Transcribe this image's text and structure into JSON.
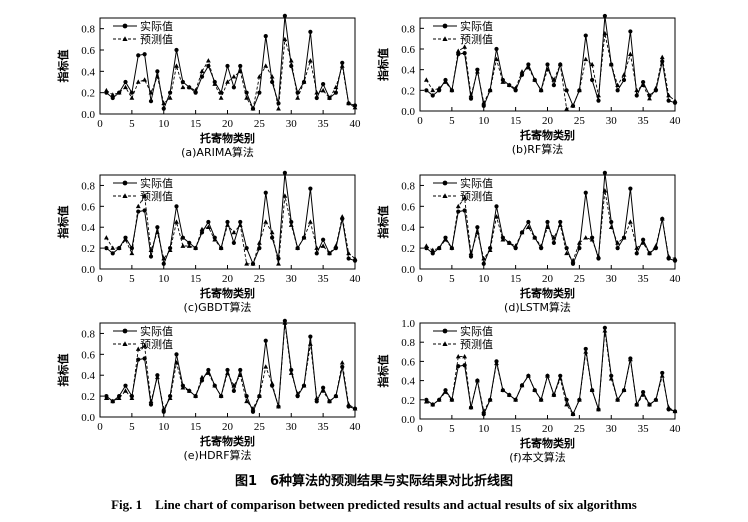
{
  "figure": {
    "caption_cn": "图1　6种算法的预测结果与实际结果对比折线图",
    "caption_en": "Fig. 1　Line chart of comparison between predicted results and actual results of six algorithms"
  },
  "chart_data": [
    {
      "type": "line",
      "title": "(a)ARIMA算法",
      "xlabel": "托寄物类别",
      "ylabel": "指标值",
      "xlim": [
        0,
        40
      ],
      "ylim": [
        0,
        0.9
      ],
      "yticks": [
        0.0,
        0.2,
        0.4,
        0.6,
        0.8
      ],
      "xticks": [
        0,
        5,
        10,
        15,
        20,
        25,
        30,
        35,
        40
      ],
      "legend": "top-left",
      "grid": false,
      "x": [
        1,
        2,
        3,
        4,
        5,
        6,
        7,
        8,
        9,
        10,
        11,
        12,
        13,
        14,
        15,
        16,
        17,
        18,
        19,
        20,
        21,
        22,
        23,
        24,
        25,
        26,
        27,
        28,
        29,
        30,
        31,
        32,
        33,
        34,
        35,
        36,
        37,
        38,
        39,
        40
      ],
      "series": [
        {
          "name": "实际值",
          "style": "solid-circle",
          "values": [
            0.2,
            0.15,
            0.2,
            0.3,
            0.2,
            0.55,
            0.56,
            0.12,
            0.4,
            0.05,
            0.2,
            0.6,
            0.3,
            0.25,
            0.2,
            0.35,
            0.45,
            0.3,
            0.2,
            0.45,
            0.25,
            0.45,
            0.2,
            0.05,
            0.2,
            0.73,
            0.3,
            0.1,
            0.92,
            0.45,
            0.2,
            0.3,
            0.77,
            0.15,
            0.28,
            0.15,
            0.2,
            0.48,
            0.1,
            0.08
          ]
        },
        {
          "name": "预测值",
          "style": "dashed-triangle",
          "values": [
            0.22,
            0.18,
            0.2,
            0.25,
            0.15,
            0.3,
            0.32,
            0.2,
            0.35,
            0.1,
            0.15,
            0.45,
            0.25,
            0.25,
            0.22,
            0.4,
            0.5,
            0.28,
            0.15,
            0.3,
            0.35,
            0.4,
            0.15,
            0.05,
            0.35,
            0.45,
            0.35,
            0.05,
            0.7,
            0.5,
            0.15,
            0.3,
            0.5,
            0.2,
            0.22,
            0.15,
            0.25,
            0.45,
            0.1,
            0.06
          ]
        }
      ]
    },
    {
      "type": "line",
      "title": "(b)RF算法",
      "xlabel": "托寄物类别",
      "ylabel": "指标值",
      "xlim": [
        0,
        40
      ],
      "ylim": [
        0,
        0.9
      ],
      "yticks": [
        0.0,
        0.2,
        0.4,
        0.6,
        0.8
      ],
      "xticks": [
        0,
        5,
        10,
        15,
        20,
        25,
        30,
        35,
        40
      ],
      "legend": "top-left",
      "grid": false,
      "x": [
        1,
        2,
        3,
        4,
        5,
        6,
        7,
        8,
        9,
        10,
        11,
        12,
        13,
        14,
        15,
        16,
        17,
        18,
        19,
        20,
        21,
        22,
        23,
        24,
        25,
        26,
        27,
        28,
        29,
        30,
        31,
        32,
        33,
        34,
        35,
        36,
        37,
        38,
        39,
        40
      ],
      "series": [
        {
          "name": "实际值",
          "style": "solid-circle",
          "values": [
            0.2,
            0.15,
            0.2,
            0.3,
            0.2,
            0.55,
            0.56,
            0.12,
            0.4,
            0.05,
            0.2,
            0.6,
            0.3,
            0.25,
            0.2,
            0.35,
            0.45,
            0.3,
            0.2,
            0.45,
            0.25,
            0.45,
            0.2,
            0.05,
            0.2,
            0.73,
            0.3,
            0.1,
            0.92,
            0.45,
            0.2,
            0.3,
            0.77,
            0.15,
            0.28,
            0.15,
            0.2,
            0.48,
            0.1,
            0.08
          ]
        },
        {
          "name": "预测值",
          "style": "dashed-triangle",
          "values": [
            0.3,
            0.2,
            0.22,
            0.28,
            0.2,
            0.58,
            0.62,
            0.15,
            0.38,
            0.08,
            0.2,
            0.5,
            0.28,
            0.25,
            0.22,
            0.38,
            0.42,
            0.3,
            0.2,
            0.4,
            0.3,
            0.45,
            0.02,
            0.05,
            0.2,
            0.5,
            0.45,
            0.15,
            0.75,
            0.45,
            0.25,
            0.35,
            0.55,
            0.2,
            0.25,
            0.12,
            0.22,
            0.52,
            0.15,
            0.1
          ]
        }
      ]
    },
    {
      "type": "line",
      "title": "(c)GBDT算法",
      "xlabel": "托寄物类别",
      "ylabel": "指标值",
      "xlim": [
        0,
        40
      ],
      "ylim": [
        0,
        0.9
      ],
      "yticks": [
        0.0,
        0.2,
        0.4,
        0.6,
        0.8
      ],
      "xticks": [
        0,
        5,
        10,
        15,
        20,
        25,
        30,
        35,
        40
      ],
      "legend": "top-left",
      "grid": false,
      "x": [
        1,
        2,
        3,
        4,
        5,
        6,
        7,
        8,
        9,
        10,
        11,
        12,
        13,
        14,
        15,
        16,
        17,
        18,
        19,
        20,
        21,
        22,
        23,
        24,
        25,
        26,
        27,
        28,
        29,
        30,
        31,
        32,
        33,
        34,
        35,
        36,
        37,
        38,
        39,
        40
      ],
      "series": [
        {
          "name": "实际值",
          "style": "solid-circle",
          "values": [
            0.2,
            0.15,
            0.2,
            0.3,
            0.2,
            0.55,
            0.56,
            0.12,
            0.4,
            0.05,
            0.2,
            0.6,
            0.3,
            0.25,
            0.2,
            0.35,
            0.45,
            0.3,
            0.2,
            0.45,
            0.25,
            0.45,
            0.2,
            0.05,
            0.2,
            0.73,
            0.3,
            0.1,
            0.92,
            0.45,
            0.2,
            0.3,
            0.77,
            0.15,
            0.28,
            0.15,
            0.2,
            0.48,
            0.1,
            0.08
          ]
        },
        {
          "name": "预测值",
          "style": "dashed-triangle",
          "values": [
            0.3,
            0.2,
            0.2,
            0.28,
            0.15,
            0.6,
            0.7,
            0.18,
            0.35,
            0.1,
            0.18,
            0.45,
            0.22,
            0.22,
            0.2,
            0.38,
            0.4,
            0.28,
            0.2,
            0.42,
            0.35,
            0.42,
            0.05,
            0.05,
            0.25,
            0.45,
            0.35,
            0.05,
            0.7,
            0.42,
            0.2,
            0.3,
            0.45,
            0.2,
            0.22,
            0.15,
            0.22,
            0.5,
            0.15,
            0.1
          ]
        }
      ]
    },
    {
      "type": "line",
      "title": "(d)LSTM算法",
      "xlabel": "托寄物类别",
      "ylabel": "指标值",
      "xlim": [
        0,
        40
      ],
      "ylim": [
        0,
        0.9
      ],
      "yticks": [
        0.0,
        0.2,
        0.4,
        0.6,
        0.8
      ],
      "xticks": [
        0,
        5,
        10,
        15,
        20,
        25,
        30,
        35,
        40
      ],
      "legend": "top-left",
      "grid": false,
      "x": [
        1,
        2,
        3,
        4,
        5,
        6,
        7,
        8,
        9,
        10,
        11,
        12,
        13,
        14,
        15,
        16,
        17,
        18,
        19,
        20,
        21,
        22,
        23,
        24,
        25,
        26,
        27,
        28,
        29,
        30,
        31,
        32,
        33,
        34,
        35,
        36,
        37,
        38,
        39,
        40
      ],
      "series": [
        {
          "name": "实际值",
          "style": "solid-circle",
          "values": [
            0.2,
            0.15,
            0.2,
            0.3,
            0.2,
            0.55,
            0.56,
            0.12,
            0.4,
            0.05,
            0.2,
            0.6,
            0.3,
            0.25,
            0.2,
            0.35,
            0.45,
            0.3,
            0.2,
            0.45,
            0.25,
            0.45,
            0.2,
            0.05,
            0.2,
            0.73,
            0.3,
            0.1,
            0.92,
            0.45,
            0.2,
            0.3,
            0.77,
            0.15,
            0.28,
            0.15,
            0.2,
            0.48,
            0.1,
            0.08
          ]
        },
        {
          "name": "预测值",
          "style": "dashed-triangle",
          "values": [
            0.22,
            0.18,
            0.2,
            0.28,
            0.2,
            0.6,
            0.68,
            0.15,
            0.35,
            0.1,
            0.18,
            0.5,
            0.28,
            0.25,
            0.22,
            0.35,
            0.4,
            0.3,
            0.22,
            0.4,
            0.3,
            0.42,
            0.15,
            0.08,
            0.25,
            0.3,
            0.28,
            0.12,
            0.75,
            0.4,
            0.25,
            0.3,
            0.45,
            0.2,
            0.25,
            0.15,
            0.22,
            0.48,
            0.12,
            0.1
          ]
        }
      ]
    },
    {
      "type": "line",
      "title": "(e)HDRF算法",
      "xlabel": "托寄物类别",
      "ylabel": "指标值",
      "xlim": [
        0,
        40
      ],
      "ylim": [
        0,
        0.9
      ],
      "yticks": [
        0.0,
        0.2,
        0.4,
        0.6,
        0.8
      ],
      "xticks": [
        0,
        5,
        10,
        15,
        20,
        25,
        30,
        35,
        40
      ],
      "legend": "top-left",
      "grid": false,
      "x": [
        1,
        2,
        3,
        4,
        5,
        6,
        7,
        8,
        9,
        10,
        11,
        12,
        13,
        14,
        15,
        16,
        17,
        18,
        19,
        20,
        21,
        22,
        23,
        24,
        25,
        26,
        27,
        28,
        29,
        30,
        31,
        32,
        33,
        34,
        35,
        36,
        37,
        38,
        39,
        40
      ],
      "series": [
        {
          "name": "实际值",
          "style": "solid-circle",
          "values": [
            0.2,
            0.15,
            0.2,
            0.3,
            0.2,
            0.55,
            0.56,
            0.12,
            0.4,
            0.05,
            0.2,
            0.6,
            0.3,
            0.25,
            0.2,
            0.35,
            0.45,
            0.3,
            0.2,
            0.45,
            0.25,
            0.45,
            0.2,
            0.05,
            0.2,
            0.73,
            0.3,
            0.1,
            0.92,
            0.45,
            0.2,
            0.3,
            0.77,
            0.15,
            0.28,
            0.15,
            0.2,
            0.48,
            0.1,
            0.08
          ]
        },
        {
          "name": "预测值",
          "style": "dashed-triangle",
          "values": [
            0.18,
            0.15,
            0.18,
            0.25,
            0.18,
            0.65,
            0.68,
            0.15,
            0.38,
            0.08,
            0.18,
            0.52,
            0.28,
            0.25,
            0.2,
            0.38,
            0.42,
            0.3,
            0.2,
            0.42,
            0.3,
            0.4,
            0.15,
            0.08,
            0.2,
            0.48,
            0.32,
            0.1,
            0.9,
            0.42,
            0.22,
            0.3,
            0.7,
            0.18,
            0.25,
            0.15,
            0.2,
            0.52,
            0.12,
            0.08
          ]
        }
      ]
    },
    {
      "type": "line",
      "title": "(f)本文算法",
      "xlabel": "托寄物类别",
      "ylabel": "指标值",
      "xlim": [
        0,
        40
      ],
      "ylim": [
        0,
        1.0
      ],
      "yticks": [
        0.0,
        0.2,
        0.4,
        0.6,
        0.8,
        1.0
      ],
      "xticks": [
        0,
        5,
        10,
        15,
        20,
        25,
        30,
        35,
        40
      ],
      "legend": "top-left",
      "grid": false,
      "x": [
        1,
        2,
        3,
        4,
        5,
        6,
        7,
        8,
        9,
        10,
        11,
        12,
        13,
        14,
        15,
        16,
        17,
        18,
        19,
        20,
        21,
        22,
        23,
        24,
        25,
        26,
        27,
        28,
        29,
        30,
        31,
        32,
        33,
        34,
        35,
        36,
        37,
        38,
        39,
        40
      ],
      "series": [
        {
          "name": "实际值",
          "style": "solid-circle",
          "values": [
            0.2,
            0.15,
            0.2,
            0.3,
            0.2,
            0.55,
            0.56,
            0.12,
            0.4,
            0.05,
            0.2,
            0.6,
            0.3,
            0.25,
            0.2,
            0.35,
            0.45,
            0.3,
            0.2,
            0.45,
            0.25,
            0.45,
            0.2,
            0.05,
            0.2,
            0.73,
            0.3,
            0.1,
            0.95,
            0.45,
            0.2,
            0.3,
            0.63,
            0.15,
            0.28,
            0.15,
            0.2,
            0.48,
            0.1,
            0.08
          ]
        },
        {
          "name": "预测值",
          "style": "dashed-triangle",
          "values": [
            0.18,
            0.15,
            0.2,
            0.28,
            0.2,
            0.65,
            0.65,
            0.12,
            0.4,
            0.08,
            0.2,
            0.58,
            0.3,
            0.25,
            0.2,
            0.35,
            0.45,
            0.3,
            0.2,
            0.45,
            0.25,
            0.42,
            0.15,
            0.05,
            0.2,
            0.7,
            0.3,
            0.1,
            0.92,
            0.42,
            0.2,
            0.3,
            0.62,
            0.15,
            0.25,
            0.15,
            0.2,
            0.45,
            0.12,
            0.08
          ]
        }
      ]
    }
  ]
}
